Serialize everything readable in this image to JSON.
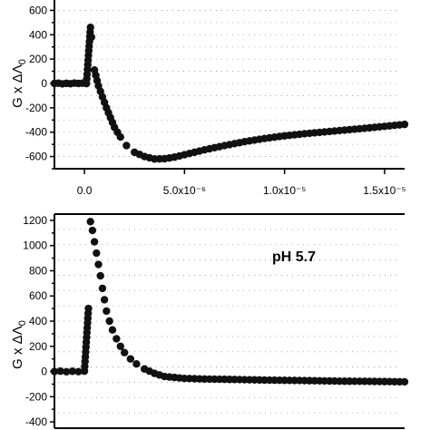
{
  "chart_data": [
    {
      "type": "scatter",
      "title": "",
      "xlabel": "",
      "ylabel": "G x ΔΛ0",
      "ylabel_main": "G x ΔΛ",
      "ylabel_sub": "0",
      "xlim": [
        -1.5e-06,
        1.6e-05
      ],
      "ylim": [
        -700,
        700
      ],
      "grid": true,
      "x_ticks": [
        0,
        5e-06,
        1e-05,
        1.5e-05
      ],
      "x_tick_labels": [
        "0.0",
        "5.0x10⁻⁶",
        "1.0x10⁻⁵",
        "1.5x10⁻⁵"
      ],
      "y_ticks": [
        600,
        400,
        200,
        0,
        -200,
        -400,
        -600
      ],
      "y_tick_labels": [
        "600",
        "400",
        "200",
        "0",
        "-200",
        "-400",
        "-600"
      ],
      "series": [
        {
          "values": [
            [
              -1.5e-06,
              0
            ],
            [
              -1.3e-06,
              2
            ],
            [
              -1.1e-06,
              -3
            ],
            [
              -9e-07,
              1
            ],
            [
              -7e-07,
              -2
            ],
            [
              -5e-07,
              3
            ],
            [
              -3e-07,
              0
            ],
            [
              -1e-07,
              2
            ],
            [
              1e-07,
              -1
            ],
            [
              3e-07,
              460
            ],
            [
              3.5e-07,
              380
            ],
            [
              5e-07,
              110
            ],
            [
              7e-07,
              -20
            ],
            [
              9e-07,
              -110
            ],
            [
              1.1e-06,
              -200
            ],
            [
              1.3e-06,
              -280
            ],
            [
              1.5e-06,
              -360
            ],
            [
              1.8e-06,
              -440
            ],
            [
              2.1e-06,
              -510
            ],
            [
              2.5e-06,
              -565
            ],
            [
              3e-06,
              -600
            ],
            [
              3.5e-06,
              -620
            ],
            [
              4e-06,
              -618
            ],
            [
              4.5e-06,
              -605
            ],
            [
              5e-06,
              -585
            ],
            [
              6e-06,
              -545
            ],
            [
              7e-06,
              -510
            ],
            [
              8e-06,
              -478
            ],
            [
              9e-06,
              -452
            ],
            [
              1e-05,
              -430
            ],
            [
              1.1e-05,
              -413
            ],
            [
              1.2e-05,
              -398
            ],
            [
              1.3e-05,
              -383
            ],
            [
              1.4e-05,
              -368
            ],
            [
              1.5e-05,
              -352
            ],
            [
              1.6e-05,
              -336
            ]
          ]
        }
      ]
    },
    {
      "type": "scatter",
      "title": "",
      "xlabel": "",
      "ylabel": "G x ΔΛ0",
      "ylabel_main": "G x ΔΛ",
      "ylabel_sub": "0",
      "xlim": [
        -1.5e-06,
        1.6e-05
      ],
      "ylim": [
        -450,
        1250
      ],
      "grid": true,
      "annotation": "pH 5.7",
      "y_ticks": [
        1200,
        1000,
        800,
        600,
        400,
        200,
        0,
        -200,
        -400
      ],
      "y_tick_labels": [
        "1200",
        "1000",
        "800",
        "600",
        "400",
        "200",
        "0",
        "-200",
        "-400"
      ],
      "series": [
        {
          "values": [
            [
              -1.5e-06,
              0
            ],
            [
              -1.2e-06,
              3
            ],
            [
              -9e-07,
              -2
            ],
            [
              -6e-07,
              2
            ],
            [
              -3e-07,
              -1
            ],
            [
              0,
              3
            ],
            [
              2e-07,
              500
            ],
            [
              3e-07,
              1190
            ],
            [
              4e-07,
              1120
            ],
            [
              5e-07,
              1030
            ],
            [
              6e-07,
              940
            ],
            [
              7e-07,
              850
            ],
            [
              8e-07,
              760
            ],
            [
              9e-07,
              660
            ],
            [
              1e-06,
              570
            ],
            [
              1.1e-06,
              480
            ],
            [
              1.25e-06,
              400
            ],
            [
              1.4e-06,
              330
            ],
            [
              1.6e-06,
              260
            ],
            [
              1.8e-06,
              200
            ],
            [
              2e-06,
              150
            ],
            [
              2.3e-06,
              100
            ],
            [
              2.6e-06,
              60
            ],
            [
              3e-06,
              20
            ],
            [
              3.5e-06,
              -15
            ],
            [
              4e-06,
              -40
            ],
            [
              5e-06,
              -55
            ],
            [
              6e-06,
              -60
            ],
            [
              7e-06,
              -62
            ],
            [
              8e-06,
              -65
            ],
            [
              9e-06,
              -68
            ],
            [
              1e-05,
              -70
            ],
            [
              1.1e-05,
              -72
            ],
            [
              1.2e-05,
              -75
            ],
            [
              1.3e-05,
              -77
            ],
            [
              1.4e-05,
              -78
            ],
            [
              1.5e-05,
              -80
            ],
            [
              1.6e-05,
              -82
            ]
          ]
        }
      ]
    }
  ]
}
